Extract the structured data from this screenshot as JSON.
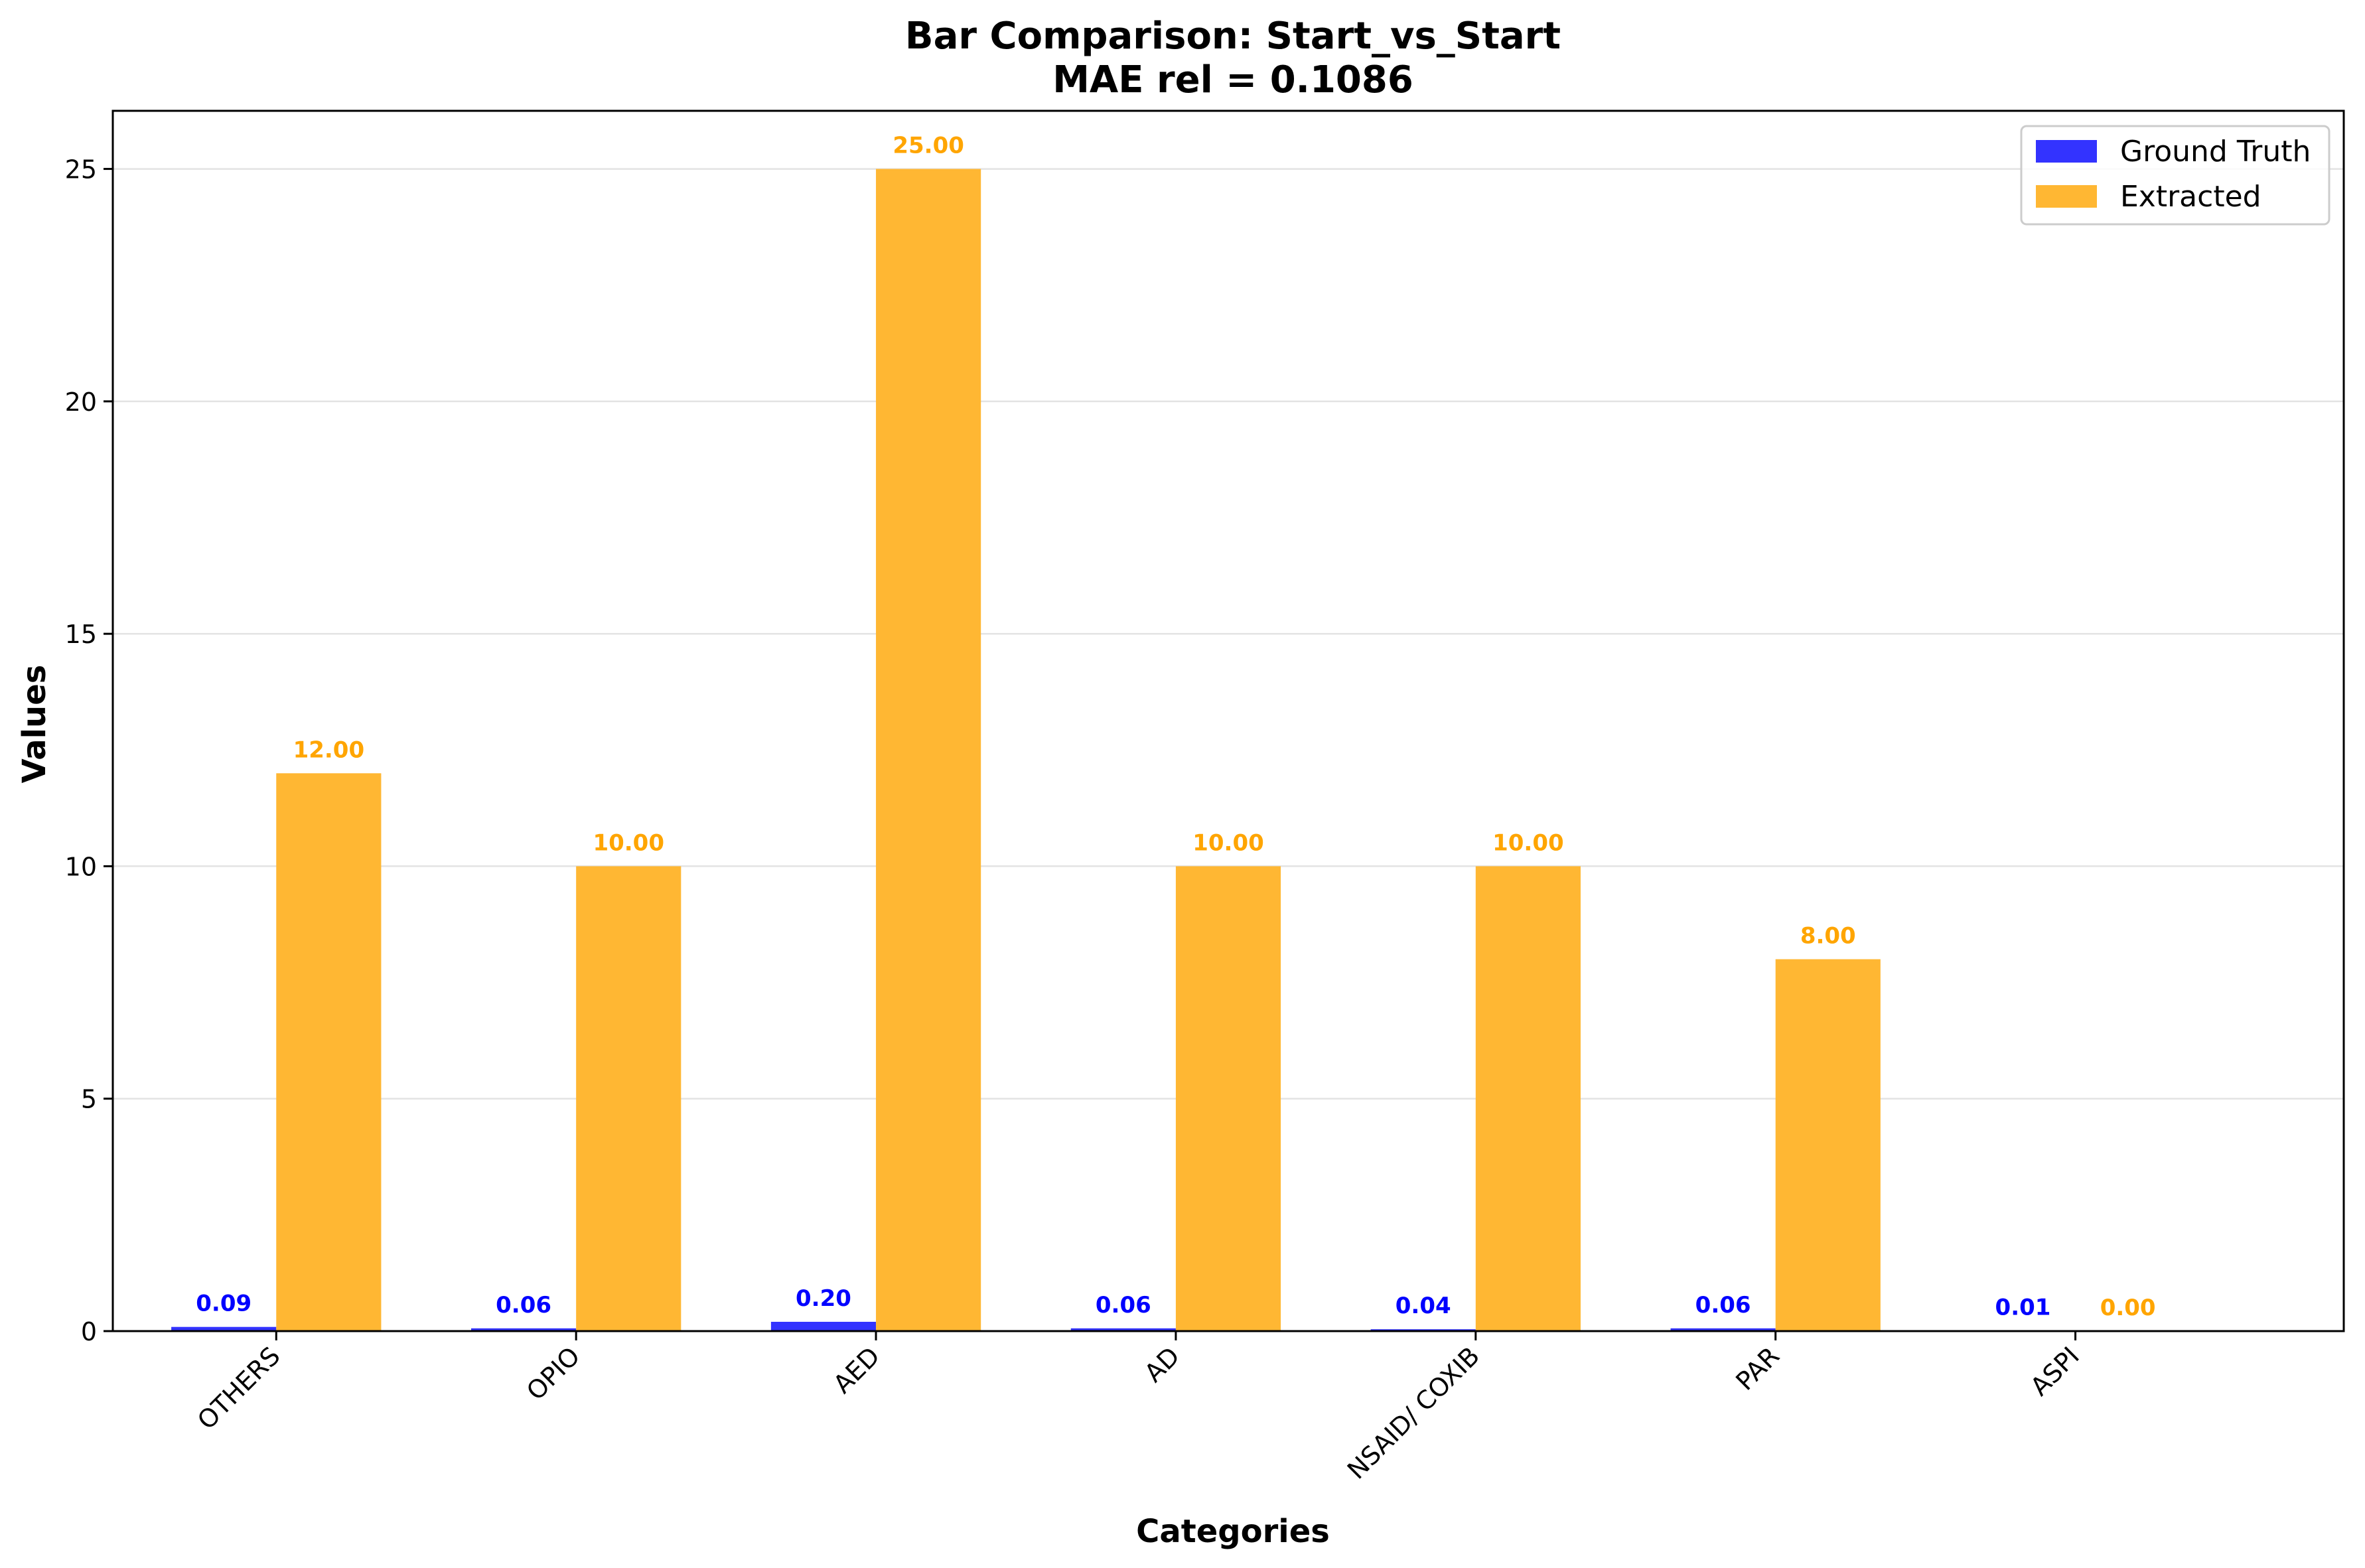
{
  "chart_data": {
    "type": "bar",
    "title_line1": "Bar Comparison: Start_vs_Start",
    "title_line2": "MAE rel = 0.1086",
    "xlabel": "Categories",
    "ylabel": "Values",
    "categories": [
      "OTHERS",
      "OPIO",
      "AED",
      "AD",
      "NSAID/ COXIB",
      "PAR",
      "ASPI"
    ],
    "series": [
      {
        "name": "Ground Truth",
        "color": "#3333ff",
        "label_color": "#0000ff",
        "values": [
          0.09,
          0.06,
          0.2,
          0.06,
          0.04,
          0.06,
          0.01
        ],
        "labels": [
          "0.09",
          "0.06",
          "0.20",
          "0.06",
          "0.04",
          "0.06",
          "0.01"
        ]
      },
      {
        "name": "Extracted",
        "color": "#ffb733",
        "label_color": "#ffa500",
        "values": [
          12,
          10,
          25,
          10,
          10,
          8,
          0
        ],
        "labels": [
          "12.00",
          "10.00",
          "25.00",
          "10.00",
          "10.00",
          "8.00",
          "0.00"
        ]
      }
    ],
    "ylim": [
      0,
      26.25
    ],
    "yticks": [
      "0",
      "5",
      "10",
      "15",
      "20",
      "25"
    ],
    "grid": "horizontal",
    "legend_position": "top-right"
  }
}
